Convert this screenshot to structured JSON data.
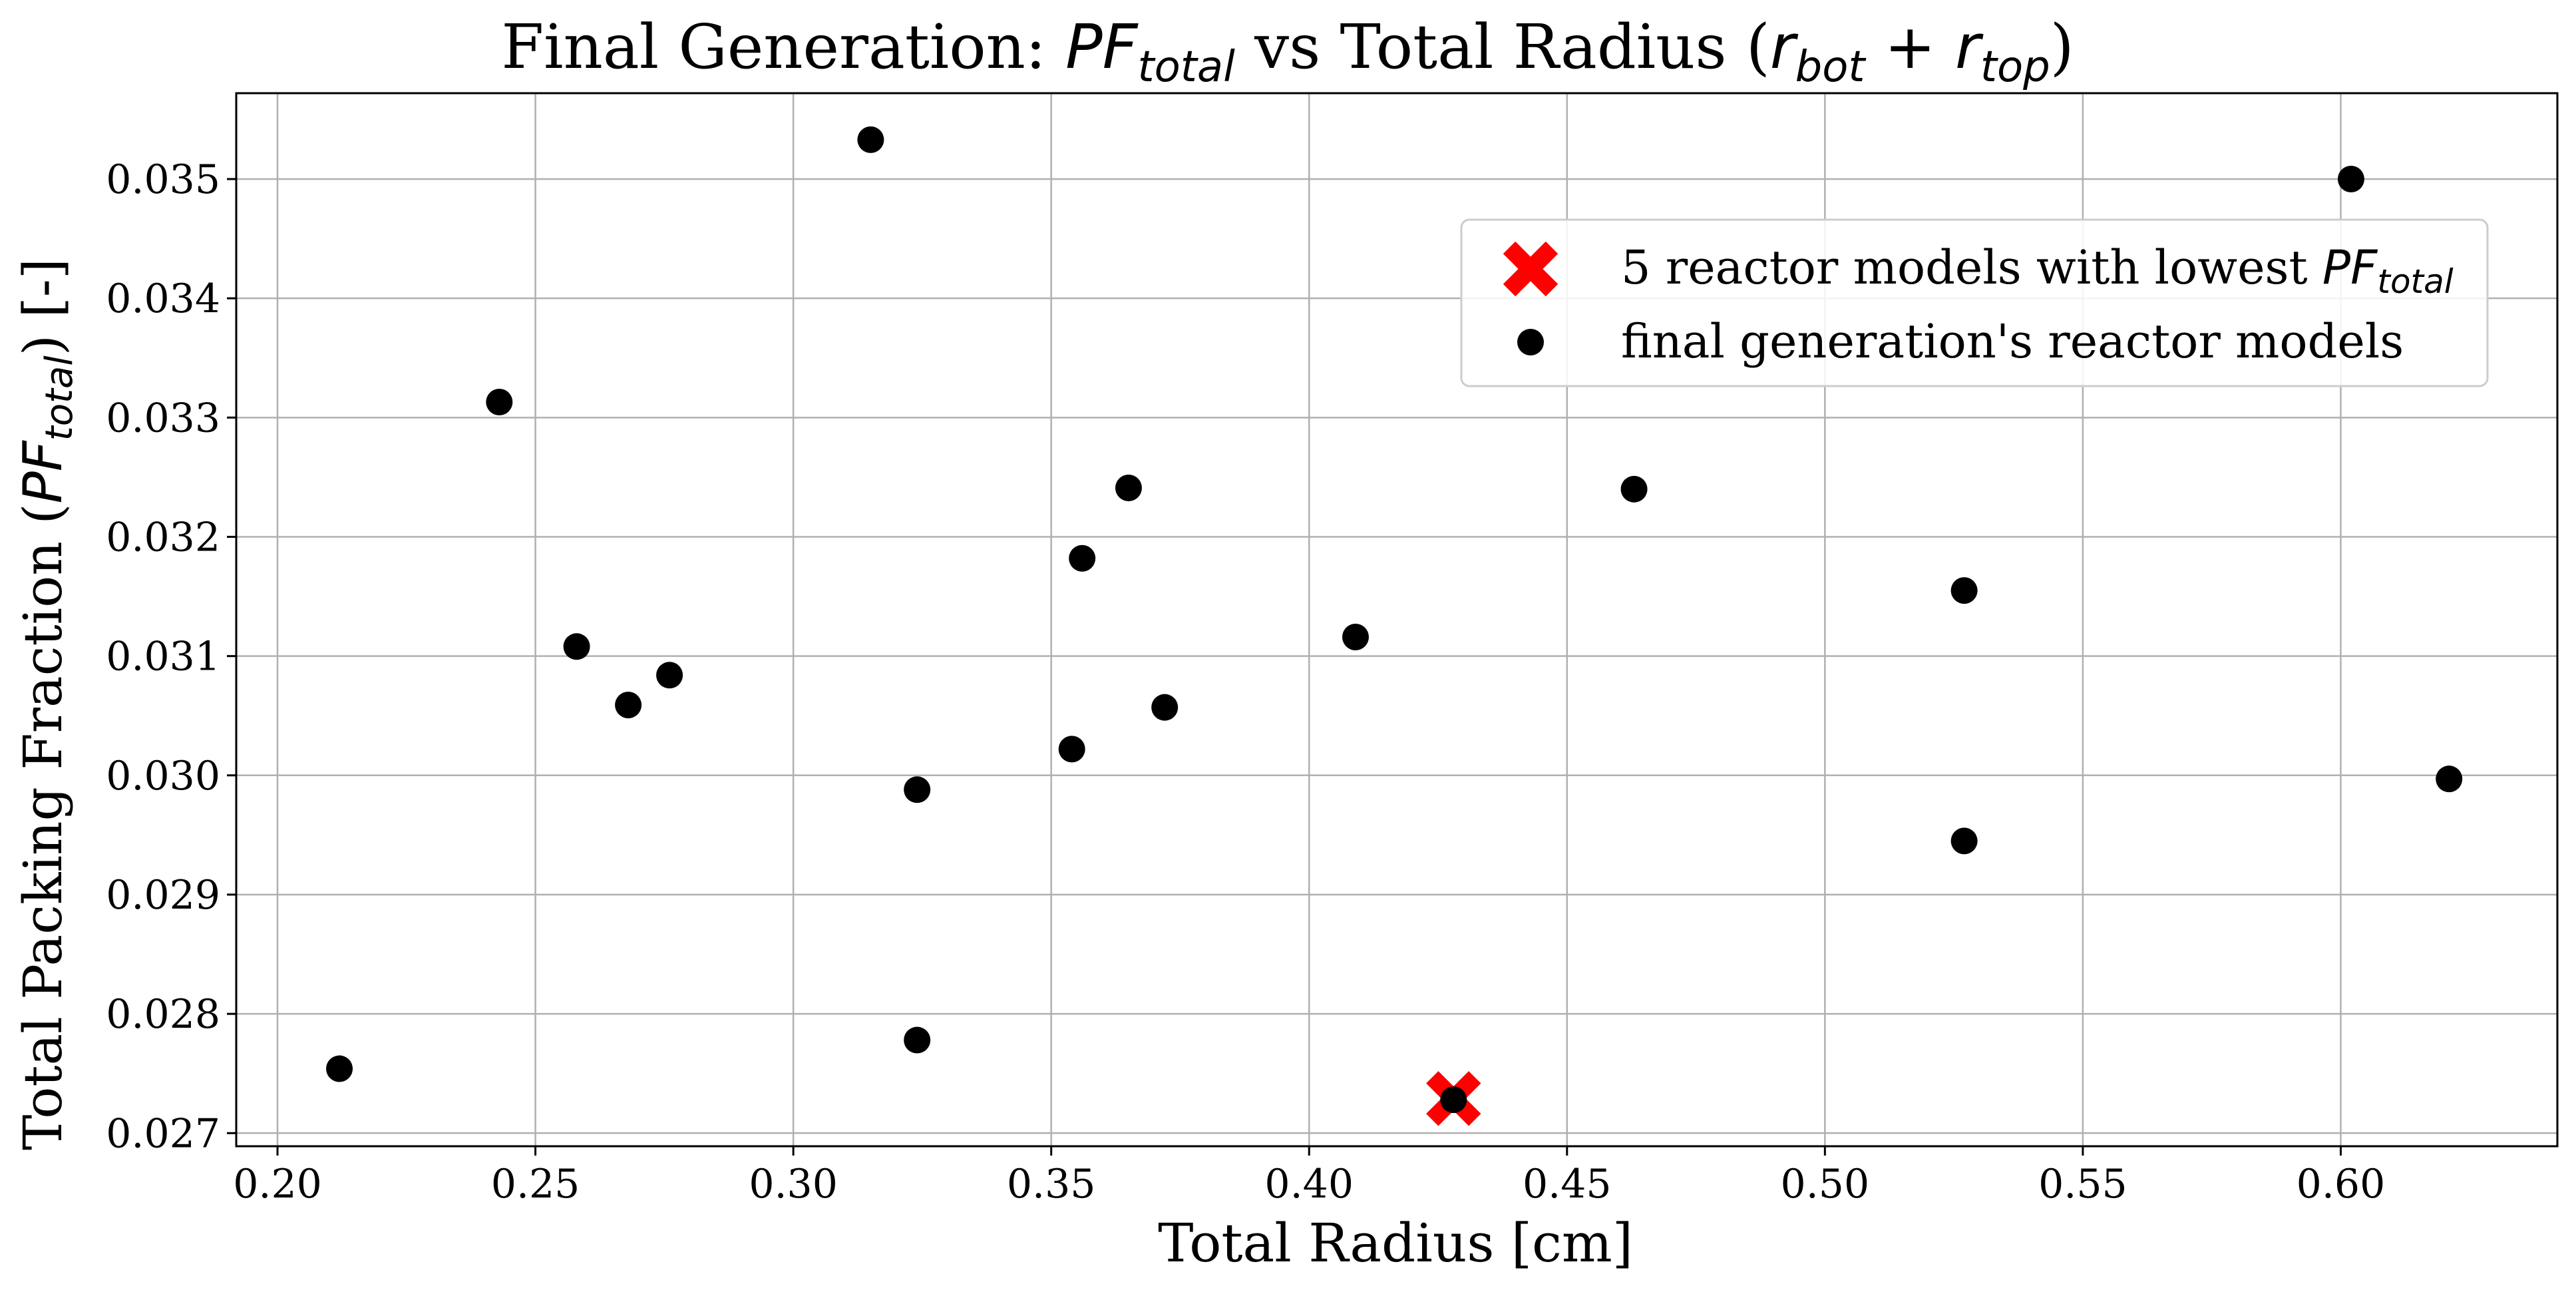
{
  "chart_data": {
    "type": "scatter",
    "title": {
      "prefix": "Final Generation: ",
      "var1_base": "PF",
      "var1_sub": "total",
      "middle": " vs Total Radius (",
      "var2_base": "r",
      "var2_sub": "bot",
      "plus": " + ",
      "var3_base": "r",
      "var3_sub": "top",
      "suffix": ")"
    },
    "xlabel": "Total Radius [cm]",
    "ylabel": {
      "prefix": "Total Packing Fraction (",
      "var_base": "PF",
      "var_sub": "total",
      "suffix": ") [-]"
    },
    "xlim": [
      0.192,
      0.642
    ],
    "ylim": [
      0.02689,
      0.03572
    ],
    "x_ticks": [
      0.2,
      0.25,
      0.3,
      0.35,
      0.4,
      0.45,
      0.5,
      0.55,
      0.6
    ],
    "x_tick_labels": [
      "0.20",
      "0.25",
      "0.30",
      "0.35",
      "0.40",
      "0.45",
      "0.50",
      "0.55",
      "0.60"
    ],
    "y_ticks": [
      0.027,
      0.028,
      0.029,
      0.03,
      0.031,
      0.032,
      0.033,
      0.034,
      0.035
    ],
    "y_tick_labels": [
      "0.027",
      "0.028",
      "0.029",
      "0.030",
      "0.031",
      "0.032",
      "0.033",
      "0.034",
      "0.035"
    ],
    "grid": true,
    "legend": {
      "placement": "upper-right",
      "entries": [
        {
          "marker": "x",
          "color": "#ff0000",
          "prefix": "5 reactor models with lowest ",
          "var_base": "PF",
          "var_sub": "total"
        },
        {
          "marker": "circle",
          "color": "#000000",
          "prefix": "final generation's reactor models",
          "var_base": "",
          "var_sub": ""
        }
      ]
    },
    "series": [
      {
        "marker": "x",
        "color": "#ff0000",
        "points": [
          [
            0.428,
            0.02729
          ]
        ]
      },
      {
        "marker": "circle",
        "color": "#000000",
        "points": [
          [
            0.212,
            0.02754
          ],
          [
            0.243,
            0.03313
          ],
          [
            0.258,
            0.03108
          ],
          [
            0.268,
            0.03059
          ],
          [
            0.276,
            0.03084
          ],
          [
            0.315,
            0.03533
          ],
          [
            0.324,
            0.02988
          ],
          [
            0.324,
            0.02778
          ],
          [
            0.354,
            0.03022
          ],
          [
            0.356,
            0.03182
          ],
          [
            0.365,
            0.03241
          ],
          [
            0.372,
            0.03057
          ],
          [
            0.409,
            0.03116
          ],
          [
            0.428,
            0.02728
          ],
          [
            0.463,
            0.0324
          ],
          [
            0.527,
            0.03155
          ],
          [
            0.527,
            0.02945
          ],
          [
            0.602,
            0.035
          ],
          [
            0.621,
            0.02997
          ]
        ]
      }
    ]
  }
}
